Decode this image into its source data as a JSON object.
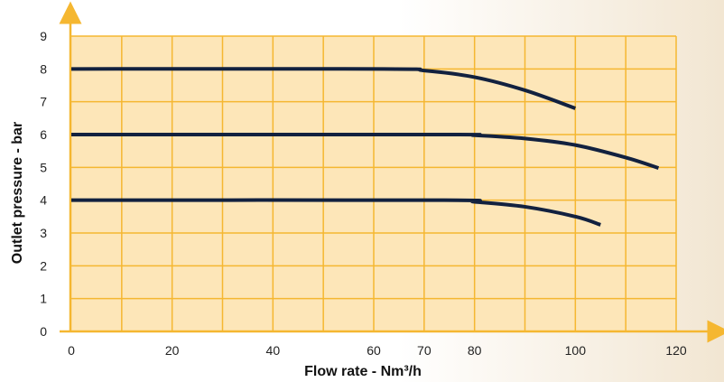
{
  "chart_data": {
    "type": "line",
    "title": "",
    "xlabel": "Flow rate - Nm³/h",
    "ylabel": "Outlet pressure - bar",
    "xlim": [
      0,
      120
    ],
    "ylim": [
      0,
      9
    ],
    "x_ticks": [
      0,
      20,
      40,
      60,
      70,
      80,
      100,
      120
    ],
    "y_ticks": [
      0,
      1,
      2,
      3,
      4,
      5,
      6,
      7,
      8,
      9
    ],
    "grid": true,
    "legend": "none",
    "colors": {
      "plot_bg": "#fde6b8",
      "grid": "#f5b731",
      "axis": "#f5b731",
      "line": "#12213f",
      "page_bg_left": "#ffffff",
      "page_bg_right": "#f2e6d2"
    },
    "series": [
      {
        "x": [
          0,
          62,
          70,
          80,
          90,
          100
        ],
        "y": [
          8.0,
          8.0,
          7.95,
          7.75,
          7.35,
          6.8
        ]
      },
      {
        "x": [
          0,
          74,
          80,
          90,
          100,
          110,
          116.5
        ],
        "y": [
          6.0,
          6.0,
          5.98,
          5.88,
          5.68,
          5.3,
          4.98
        ]
      },
      {
        "x": [
          0,
          74,
          80,
          90,
          100,
          105
        ],
        "y": [
          4.0,
          4.0,
          3.95,
          3.8,
          3.5,
          3.25
        ]
      }
    ]
  }
}
